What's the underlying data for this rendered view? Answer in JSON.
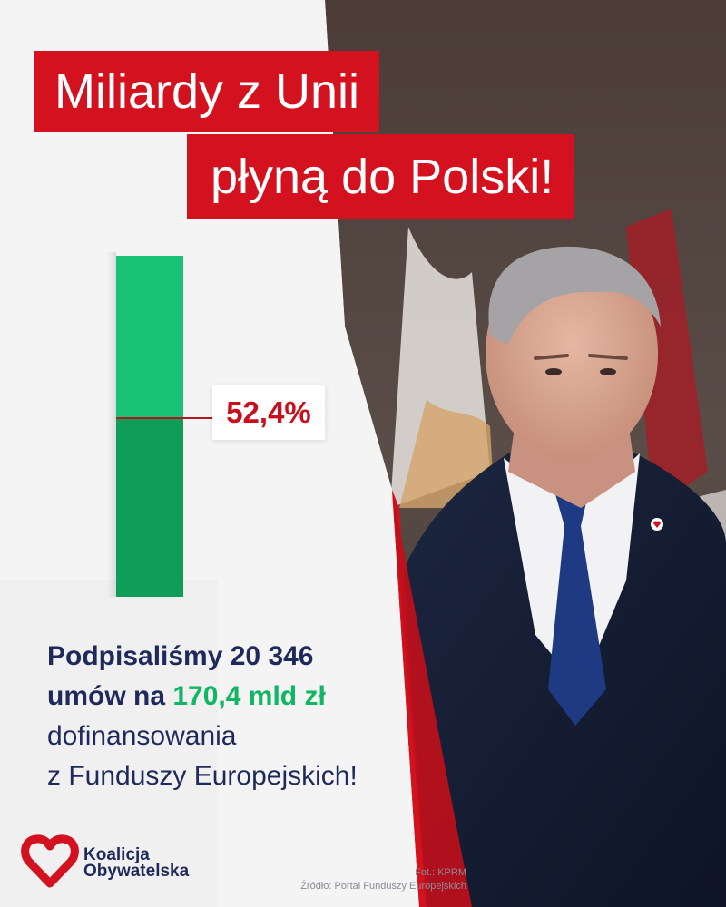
{
  "headline": {
    "line1": "Miliardy z Unii",
    "line2": "płyną do Polski!"
  },
  "progress": {
    "value_percent": 52.4,
    "label": "52,4%"
  },
  "summary": {
    "line1": "Podpisaliśmy 20 346",
    "line2_prefix": "umów na",
    "line2_amount": "170,4 mld zł",
    "line3": "dofinansowania",
    "line4": "z Funduszy Europejskich!"
  },
  "logo": {
    "line1": "Koalicja",
    "line2": "Obywatelska",
    "icon": "heart-icon"
  },
  "credits": {
    "photo": "Fot.: KPRM",
    "source": "Źródło: Portal Funduszy Europejskich"
  },
  "colors": {
    "red": "#d4111e",
    "navy": "#1f2a5c",
    "green": "#12b563",
    "bar_light": "#19c275",
    "bar_dark": "#0f9d57"
  }
}
